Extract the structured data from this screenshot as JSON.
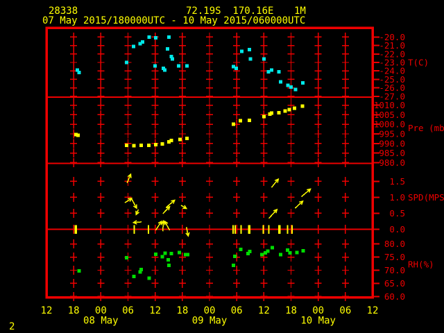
{
  "header": {
    "station_id": "28338",
    "coordinates": "72.19S  170.16E",
    "level": "1M",
    "time_range": "07 May 2015/180000UTC - 10 May 2015/060000UTC"
  },
  "footer": {
    "page_number": "2"
  },
  "colors": {
    "background": "#000000",
    "grid": "#ee0000",
    "axis_label": "#ee0000",
    "yellow_text": "#ffff00",
    "temperature": "#00e8e8",
    "pressure": "#ffff00",
    "wind": "#ffff00",
    "humidity": "#00dd00"
  },
  "x_axis": {
    "x_unit": "hours since 12UTC 07 May 2015",
    "tick_interval_hours": 6,
    "tick_labels": [
      "12",
      "18",
      "00",
      "06",
      "12",
      "18",
      "00",
      "06",
      "12",
      "18",
      "00",
      "06",
      "12"
    ],
    "date_labels": [
      {
        "label": "08 May",
        "hour": 12
      },
      {
        "label": "09 May",
        "hour": 36
      },
      {
        "label": "10 May",
        "hour": 60
      }
    ]
  },
  "chart_data": [
    {
      "type": "scatter",
      "name": "temperature",
      "ylabel": "T(C)",
      "color_key": "temperature",
      "ylim": [
        -27.1,
        -18.9
      ],
      "ytick_values": [
        -20,
        -21,
        -22,
        -23,
        -24,
        -25,
        -26,
        -27
      ],
      "ytick_labels": [
        "-20.0",
        "-21.0",
        "-22.0",
        "-23.0",
        "-24.0",
        "-25.0",
        "-26.0",
        "-27.0"
      ],
      "unit_label_value": -23,
      "points": [
        [
          6.8,
          -23.9
        ],
        [
          7.2,
          -24.2
        ],
        [
          17.7,
          -23.0
        ],
        [
          19.2,
          -21.1
        ],
        [
          20.7,
          -20.8
        ],
        [
          21.2,
          -20.6
        ],
        [
          22.7,
          -20.0
        ],
        [
          24.0,
          -23.4
        ],
        [
          24.1,
          -20.1
        ],
        [
          25.8,
          -23.7
        ],
        [
          26.1,
          -23.9
        ],
        [
          26.7,
          -21.4
        ],
        [
          27.0,
          -20.0
        ],
        [
          27.6,
          -22.3
        ],
        [
          27.8,
          -22.6
        ],
        [
          29.2,
          -23.4
        ],
        [
          31.0,
          -23.4
        ],
        [
          41.3,
          -23.5
        ],
        [
          41.9,
          -23.7
        ],
        [
          43.1,
          -21.7
        ],
        [
          44.8,
          -21.5
        ],
        [
          45.0,
          -22.6
        ],
        [
          48.0,
          -22.6
        ],
        [
          49.0,
          -24.1
        ],
        [
          49.7,
          -23.9
        ],
        [
          51.3,
          -24.1
        ],
        [
          51.7,
          -25.3
        ],
        [
          53.3,
          -25.7
        ],
        [
          54.0,
          -25.9
        ],
        [
          55.0,
          -26.2
        ],
        [
          56.6,
          -25.4
        ]
      ]
    },
    {
      "type": "scatter",
      "name": "pressure",
      "ylabel": "Pre (mb)",
      "color_key": "pressure",
      "ylim": [
        979.6,
        1014.2
      ],
      "ytick_values": [
        1010,
        1005,
        1000,
        995,
        990,
        985,
        980
      ],
      "ytick_labels": [
        "1010.0",
        "1005.0",
        "1000.0",
        "995.0",
        "990.0",
        "985.0",
        "980.0"
      ],
      "unit_label_value": 998,
      "points": [
        [
          6.5,
          994.6
        ],
        [
          7.0,
          994.2
        ],
        [
          17.7,
          989.1
        ],
        [
          19.3,
          988.8
        ],
        [
          20.9,
          989.0
        ],
        [
          22.6,
          989.1
        ],
        [
          24.1,
          989.4
        ],
        [
          25.6,
          989.8
        ],
        [
          27.0,
          990.9
        ],
        [
          27.6,
          991.5
        ],
        [
          29.5,
          992.1
        ],
        [
          31.0,
          992.7
        ],
        [
          41.3,
          1000.0
        ],
        [
          42.8,
          1001.8
        ],
        [
          44.8,
          1002.1
        ],
        [
          48.0,
          1004.0
        ],
        [
          49.3,
          1005.4
        ],
        [
          49.7,
          1005.8
        ],
        [
          51.3,
          1006.1
        ],
        [
          52.7,
          1007.0
        ],
        [
          53.6,
          1007.6
        ],
        [
          54.8,
          1008.4
        ],
        [
          56.5,
          1009.4
        ]
      ]
    },
    {
      "type": "vector",
      "name": "wind-speed",
      "ylabel": "SPD(MPS)",
      "color_key": "wind",
      "ylim": [
        0,
        2.06
      ],
      "ytick_values": [
        1.5,
        1.0,
        0.5,
        0.0
      ],
      "ytick_labels": [
        "1.5",
        "1.0",
        "0.5",
        "0.0"
      ],
      "unit_label_value": 1.0,
      "vectors": [
        {
          "tail": [
            17.8,
            1.45
          ],
          "tip": [
            18.6,
            1.72
          ]
        },
        {
          "tail": [
            17.3,
            0.83
          ],
          "tip": [
            18.8,
            0.97
          ]
        },
        {
          "tail": [
            18.8,
            0.95
          ],
          "tip": [
            19.9,
            0.66
          ]
        },
        {
          "tail": [
            20.3,
            0.62
          ],
          "tip": [
            19.8,
            0.46
          ]
        },
        {
          "tail": [
            21.0,
            0.23
          ],
          "tip": [
            19.2,
            0.21
          ]
        },
        {
          "tail": [
            24.1,
            -0.03
          ],
          "tip": [
            25.4,
            0.25
          ]
        },
        {
          "tail": [
            25.7,
            -0.06
          ],
          "tip": [
            25.8,
            0.26
          ]
        },
        {
          "tail": [
            27.2,
            -0.03
          ],
          "tip": [
            26.1,
            0.25
          ]
        },
        {
          "tail": [
            25.7,
            0.49
          ],
          "tip": [
            27.2,
            0.71
          ]
        },
        {
          "tail": [
            26.4,
            0.68
          ],
          "tip": [
            28.3,
            0.91
          ]
        },
        {
          "tail": [
            29.7,
            0.75
          ],
          "tip": [
            30.9,
            0.65
          ]
        },
        {
          "tail": [
            30.9,
            0.07
          ],
          "tip": [
            31.3,
            -0.21
          ]
        },
        {
          "tail": [
            49.1,
            0.34
          ],
          "tip": [
            50.9,
            0.62
          ]
        },
        {
          "tail": [
            49.7,
            1.31
          ],
          "tip": [
            51.2,
            1.57
          ]
        },
        {
          "tail": [
            54.9,
            0.66
          ],
          "tip": [
            56.6,
            0.88
          ]
        },
        {
          "tail": [
            56.3,
            1.02
          ],
          "tip": [
            58.3,
            1.26
          ]
        }
      ],
      "calm_marks": [
        {
          "t": 6.5,
          "bold": true
        },
        {
          "t": 19.4,
          "bold": false
        },
        {
          "t": 22.5,
          "bold": false
        },
        {
          "t": 41.2,
          "bold": false
        },
        {
          "t": 41.7,
          "bold": false
        },
        {
          "t": 43.0,
          "bold": false
        },
        {
          "t": 44.8,
          "bold": true
        },
        {
          "t": 47.9,
          "bold": false
        },
        {
          "t": 49.1,
          "bold": false
        },
        {
          "t": 51.4,
          "bold": true
        },
        {
          "t": 53.2,
          "bold": false
        },
        {
          "t": 54.2,
          "bold": false
        }
      ]
    },
    {
      "type": "scatter",
      "name": "relative-humidity",
      "ylabel": "RH(%)",
      "color_key": "humidity",
      "ylim": [
        59.7,
        85.6
      ],
      "ytick_values": [
        80,
        75,
        70,
        65,
        60
      ],
      "ytick_labels": [
        "80.0",
        "75.0",
        "70.0",
        "65.0",
        "60.0"
      ],
      "unit_label_value": 72.2,
      "points": [
        [
          7.2,
          69.7
        ],
        [
          17.7,
          74.8
        ],
        [
          19.3,
          67.6
        ],
        [
          20.7,
          69.3
        ],
        [
          20.9,
          70.3
        ],
        [
          22.7,
          67.0
        ],
        [
          24.1,
          76.1
        ],
        [
          25.6,
          75.1
        ],
        [
          26.2,
          76.5
        ],
        [
          26.9,
          74.0
        ],
        [
          27.0,
          71.8
        ],
        [
          27.6,
          76.3
        ],
        [
          29.3,
          76.8
        ],
        [
          30.7,
          75.9
        ],
        [
          31.2,
          75.9
        ],
        [
          41.3,
          71.8
        ],
        [
          41.6,
          75.3
        ],
        [
          42.9,
          78.0
        ],
        [
          44.5,
          76.4
        ],
        [
          44.9,
          77.1
        ],
        [
          47.6,
          76.0
        ],
        [
          48.3,
          76.6
        ],
        [
          48.9,
          77.3
        ],
        [
          49.9,
          78.6
        ],
        [
          51.7,
          76.0
        ],
        [
          53.2,
          77.7
        ],
        [
          53.8,
          76.6
        ],
        [
          55.3,
          76.8
        ],
        [
          56.7,
          77.4
        ]
      ]
    }
  ]
}
